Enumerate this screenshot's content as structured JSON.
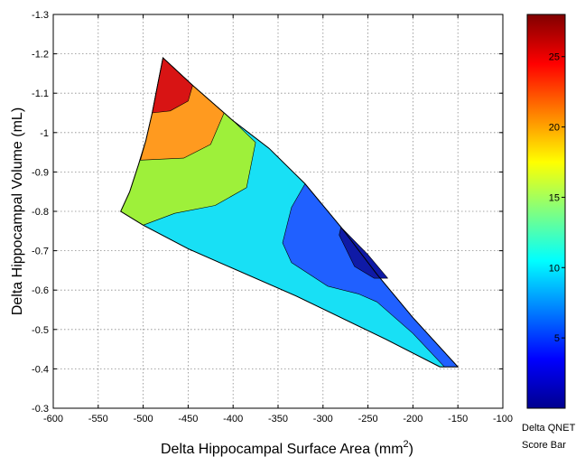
{
  "chart_data": {
    "type": "contour",
    "xlabel": "Delta Hippocampal Surface Area (mm",
    "xlabel_sup": "2",
    "xlabel_close": ")",
    "ylabel": "Delta Hippocampal Volume (mL)",
    "xlim": [
      -600,
      -100
    ],
    "ylim": [
      -0.3,
      -1.3
    ],
    "y_reversed": true,
    "grid": true,
    "x_ticks": [
      -600,
      -550,
      -500,
      -450,
      -400,
      -350,
      -300,
      -250,
      -200,
      -150,
      -100
    ],
    "x_tick_labels": [
      "-600",
      "-550",
      "-500",
      "-450",
      "-400",
      "-350",
      "-300",
      "-250",
      "-200",
      "-150",
      "-100"
    ],
    "y_ticks": [
      -1.3,
      -1.2,
      -1.1,
      -1.0,
      -0.9,
      -0.8,
      -0.7,
      -0.6,
      -0.5,
      -0.4,
      -0.3
    ],
    "y_tick_labels": [
      "-1.3",
      "-1.2",
      "-1.1",
      "-1",
      "-0.9",
      "-0.8",
      "-0.7",
      "-0.6",
      "-0.5",
      "-0.4",
      "-0.3"
    ],
    "colorbar": {
      "range": [
        0,
        28
      ],
      "ticks": [
        5,
        10,
        15,
        20,
        25
      ],
      "tick_labels": [
        "5",
        "10",
        "15",
        "20",
        "25"
      ],
      "title_line1": "Delta QNET",
      "title_line2": "Score Bar"
    },
    "region_boundary": [
      [
        -478,
        -1.19
      ],
      [
        -445,
        -1.12
      ],
      [
        -400,
        -1.03
      ],
      [
        -360,
        -0.96
      ],
      [
        -320,
        -0.87
      ],
      [
        -280,
        -0.76
      ],
      [
        -240,
        -0.64
      ],
      [
        -200,
        -0.53
      ],
      [
        -150,
        -0.405
      ],
      [
        -170,
        -0.405
      ],
      [
        -230,
        -0.475
      ],
      [
        -280,
        -0.53
      ],
      [
        -330,
        -0.585
      ],
      [
        -370,
        -0.625
      ],
      [
        -410,
        -0.665
      ],
      [
        -450,
        -0.705
      ],
      [
        -500,
        -0.765
      ],
      [
        -525,
        -0.8
      ],
      [
        -515,
        -0.85
      ],
      [
        -505,
        -0.92
      ],
      [
        -497,
        -0.98
      ],
      [
        -490,
        -1.05
      ],
      [
        -484,
        -1.12
      ]
    ],
    "contour_levels": [
      {
        "level": 12,
        "color": "#18e0f5",
        "polygon": [
          [
            -478,
            -1.19
          ],
          [
            -445,
            -1.12
          ],
          [
            -400,
            -1.03
          ],
          [
            -360,
            -0.96
          ],
          [
            -320,
            -0.87
          ],
          [
            -280,
            -0.76
          ],
          [
            -240,
            -0.64
          ],
          [
            -200,
            -0.53
          ],
          [
            -150,
            -0.405
          ],
          [
            -170,
            -0.405
          ],
          [
            -230,
            -0.475
          ],
          [
            -280,
            -0.53
          ],
          [
            -330,
            -0.585
          ],
          [
            -370,
            -0.625
          ],
          [
            -410,
            -0.665
          ],
          [
            -450,
            -0.705
          ],
          [
            -500,
            -0.765
          ],
          [
            -525,
            -0.8
          ],
          [
            -515,
            -0.85
          ],
          [
            -505,
            -0.92
          ],
          [
            -497,
            -0.98
          ],
          [
            -490,
            -1.05
          ],
          [
            -484,
            -1.12
          ]
        ]
      },
      {
        "level": 16,
        "color": "#9ef03a",
        "polygon": [
          [
            -478,
            -1.19
          ],
          [
            -445,
            -1.12
          ],
          [
            -400,
            -1.03
          ],
          [
            -375,
            -0.975
          ],
          [
            -385,
            -0.86
          ],
          [
            -420,
            -0.815
          ],
          [
            -465,
            -0.795
          ],
          [
            -500,
            -0.765
          ],
          [
            -525,
            -0.8
          ],
          [
            -515,
            -0.85
          ],
          [
            -505,
            -0.92
          ],
          [
            -497,
            -0.98
          ],
          [
            -490,
            -1.05
          ],
          [
            -484,
            -1.12
          ]
        ]
      },
      {
        "level": 20,
        "color": "#ff9a1f",
        "polygon": [
          [
            -478,
            -1.19
          ],
          [
            -445,
            -1.12
          ],
          [
            -410,
            -1.05
          ],
          [
            -425,
            -0.97
          ],
          [
            -455,
            -0.935
          ],
          [
            -503,
            -0.93
          ],
          [
            -497,
            -0.98
          ],
          [
            -490,
            -1.05
          ],
          [
            -484,
            -1.12
          ]
        ]
      },
      {
        "level": 24,
        "color": "#d81414",
        "polygon": [
          [
            -478,
            -1.19
          ],
          [
            -445,
            -1.12
          ],
          [
            -450,
            -1.08
          ],
          [
            -470,
            -1.055
          ],
          [
            -490,
            -1.05
          ],
          [
            -484,
            -1.12
          ]
        ]
      },
      {
        "level": 8,
        "color": "#2060ff",
        "polygon": [
          [
            -320,
            -0.87
          ],
          [
            -280,
            -0.76
          ],
          [
            -240,
            -0.64
          ],
          [
            -200,
            -0.53
          ],
          [
            -150,
            -0.405
          ],
          [
            -165,
            -0.405
          ],
          [
            -200,
            -0.49
          ],
          [
            -240,
            -0.57
          ],
          [
            -260,
            -0.59
          ],
          [
            -295,
            -0.61
          ],
          [
            -335,
            -0.67
          ],
          [
            -345,
            -0.72
          ],
          [
            -335,
            -0.81
          ]
        ]
      },
      {
        "level": 4,
        "color": "#0f1aa6",
        "polygon": [
          [
            -280,
            -0.76
          ],
          [
            -250,
            -0.69
          ],
          [
            -228,
            -0.63
          ],
          [
            -243,
            -0.63
          ],
          [
            -265,
            -0.66
          ],
          [
            -282,
            -0.74
          ]
        ]
      }
    ]
  }
}
